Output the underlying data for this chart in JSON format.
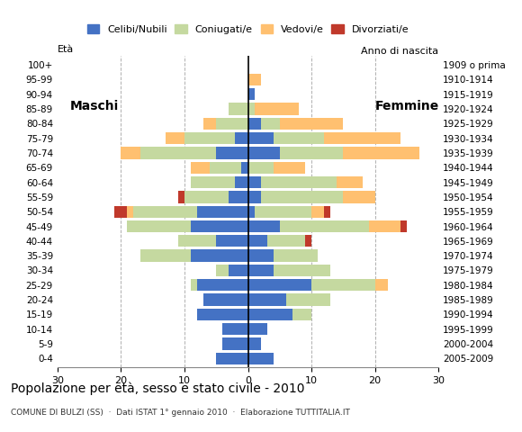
{
  "age_groups": [
    "0-4",
    "5-9",
    "10-14",
    "15-19",
    "20-24",
    "25-29",
    "30-34",
    "35-39",
    "40-44",
    "45-49",
    "50-54",
    "55-59",
    "60-64",
    "65-69",
    "70-74",
    "75-79",
    "80-84",
    "85-89",
    "90-94",
    "95-99",
    "100+"
  ],
  "birth_years": [
    "2005-2009",
    "2000-2004",
    "1995-1999",
    "1990-1994",
    "1985-1989",
    "1980-1984",
    "1975-1979",
    "1970-1974",
    "1965-1969",
    "1960-1964",
    "1955-1959",
    "1950-1954",
    "1945-1949",
    "1940-1944",
    "1935-1939",
    "1930-1934",
    "1925-1929",
    "1920-1924",
    "1915-1919",
    "1910-1914",
    "1909 o prima"
  ],
  "males": {
    "celibi": [
      5,
      4,
      4,
      8,
      7,
      8,
      3,
      9,
      5,
      9,
      8,
      3,
      2,
      1,
      5,
      2,
      0,
      0,
      0,
      0,
      0
    ],
    "coniugati": [
      0,
      0,
      0,
      0,
      0,
      1,
      2,
      8,
      6,
      10,
      10,
      7,
      7,
      5,
      12,
      8,
      5,
      3,
      0,
      0,
      0
    ],
    "vedovi": [
      0,
      0,
      0,
      0,
      0,
      0,
      0,
      0,
      0,
      0,
      1,
      0,
      0,
      3,
      3,
      3,
      2,
      0,
      0,
      0,
      0
    ],
    "divorziati": [
      0,
      0,
      0,
      0,
      0,
      0,
      0,
      0,
      0,
      0,
      2,
      1,
      0,
      0,
      0,
      0,
      0,
      0,
      0,
      0,
      0
    ]
  },
  "females": {
    "nubili": [
      4,
      2,
      3,
      7,
      6,
      10,
      4,
      4,
      3,
      5,
      1,
      2,
      2,
      0,
      5,
      4,
      2,
      0,
      1,
      0,
      0
    ],
    "coniugate": [
      0,
      0,
      0,
      3,
      7,
      10,
      9,
      7,
      6,
      14,
      9,
      13,
      12,
      4,
      10,
      8,
      3,
      1,
      0,
      0,
      0
    ],
    "vedove": [
      0,
      0,
      0,
      0,
      0,
      2,
      0,
      0,
      0,
      5,
      2,
      5,
      4,
      5,
      12,
      12,
      10,
      7,
      0,
      2,
      0
    ],
    "divorziate": [
      0,
      0,
      0,
      0,
      0,
      0,
      0,
      0,
      1,
      1,
      1,
      0,
      0,
      0,
      0,
      0,
      0,
      0,
      0,
      0,
      0
    ]
  },
  "color_celibi": "#4472c4",
  "color_coniugati": "#c5d9a0",
  "color_vedovi": "#ffc070",
  "color_divorziati": "#c0392b",
  "title": "Popolazione per età, sesso e stato civile - 2010",
  "subtitle": "COMUNE DI BULZI (SS)  ·  Dati ISTAT 1° gennaio 2010  ·  Elaborazione TUTTITALIA.IT",
  "xlabel_left": "Maschi",
  "xlabel_right": "Femmine",
  "ylabel_left": "Età",
  "ylabel_right": "Anno di nascita",
  "xlim": 30,
  "background_color": "#ffffff",
  "grid_color": "#b0b0b0"
}
